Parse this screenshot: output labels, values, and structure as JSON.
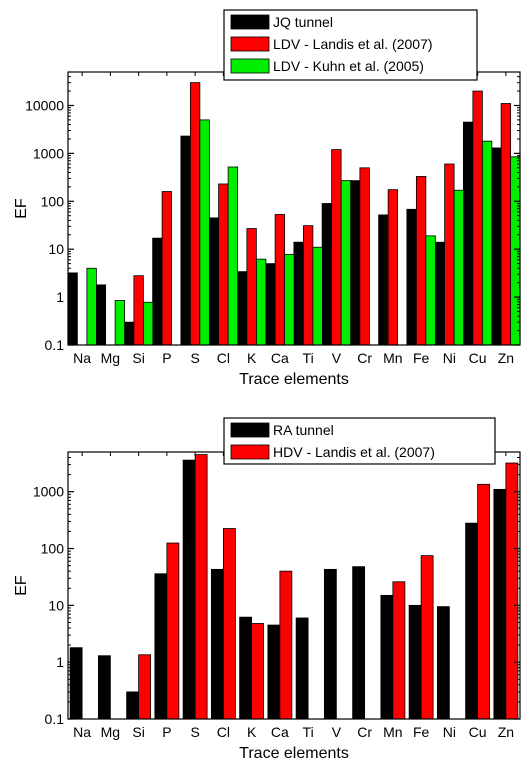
{
  "chart_data": [
    {
      "type": "bar",
      "xlabel": "Trace elements",
      "ylabel": "EF",
      "yscale": "log",
      "ylim": [
        0.1,
        50000
      ],
      "y_ticks": [
        "0.1",
        "1",
        "10",
        "100",
        "1000",
        "10000"
      ],
      "categories": [
        "Na",
        "Mg",
        "Si",
        "P",
        "S",
        "Cl",
        "K",
        "Ca",
        "Ti",
        "V",
        "Cr",
        "Mn",
        "Fe",
        "Ni",
        "Cu",
        "Zn"
      ],
      "legend_position": "top-right",
      "series": [
        {
          "name": "JQ tunnel",
          "color": "#000000",
          "values": [
            3.2,
            1.8,
            0.3,
            17,
            2300,
            45,
            3.4,
            5,
            14,
            90,
            270,
            52,
            68,
            14,
            4500,
            1300
          ]
        },
        {
          "name": "LDV - Landis et al. (2007)",
          "color": "#ff0000",
          "values": [
            null,
            null,
            2.8,
            160,
            30000,
            230,
            27,
            53,
            31,
            1200,
            500,
            175,
            330,
            600,
            20000,
            11000
          ]
        },
        {
          "name": "LDV - Kuhn et al. (2005)",
          "color": "#00ee00",
          "values": [
            4,
            0.85,
            0.78,
            null,
            5000,
            520,
            6.2,
            7.8,
            11,
            270,
            null,
            null,
            19,
            170,
            1800,
            850
          ]
        }
      ]
    },
    {
      "type": "bar",
      "xlabel": "Trace elements",
      "ylabel": "EF",
      "yscale": "log",
      "ylim": [
        0.1,
        5000
      ],
      "y_ticks": [
        "0.1",
        "1",
        "10",
        "100",
        "1000"
      ],
      "categories": [
        "Na",
        "Mg",
        "Si",
        "P",
        "S",
        "Cl",
        "K",
        "Ca",
        "Ti",
        "V",
        "Cr",
        "Mn",
        "Fe",
        "Ni",
        "Cu",
        "Zn"
      ],
      "legend_position": "top-right",
      "series": [
        {
          "name": "RA tunnel",
          "color": "#000000",
          "values": [
            1.8,
            1.3,
            0.3,
            36,
            3600,
            43,
            6.2,
            4.5,
            6,
            43,
            48,
            15,
            10,
            9.5,
            280,
            1100
          ]
        },
        {
          "name": "HDV - Landis et al. (2007)",
          "color": "#ff0000",
          "values": [
            null,
            null,
            1.35,
            125,
            4500,
            225,
            4.8,
            40,
            null,
            null,
            null,
            26,
            75,
            null,
            1350,
            3200
          ]
        }
      ]
    }
  ]
}
